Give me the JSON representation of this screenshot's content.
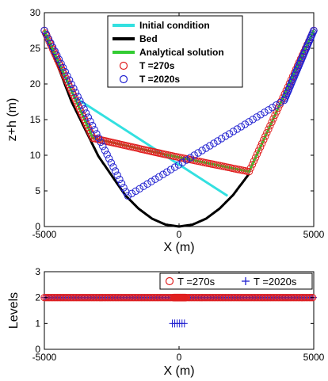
{
  "chart_data": [
    {
      "type": "line",
      "xlabel": "X (m)",
      "ylabel": "z+h (m)",
      "xlim": [
        -5000,
        5000
      ],
      "ylim": [
        0,
        30
      ],
      "xticks": [
        "-5000",
        "0",
        "5000"
      ],
      "yticks": [
        "0",
        "5",
        "10",
        "15",
        "20",
        "25",
        "30"
      ],
      "legend_position": "top-center",
      "series": [
        {
          "name": "Initial condition",
          "style": "line",
          "color": "#33e0e0",
          "x": [
            -5000,
            -3900,
            1800
          ],
          "y": [
            27.5,
            18.2,
            4.3
          ]
        },
        {
          "name": "Bed",
          "style": "line",
          "color": "#000000",
          "x": [
            -5000,
            -4000,
            -3000,
            -2000,
            -1500,
            -1000,
            -500,
            0,
            500,
            1000,
            1500,
            2000,
            2600
          ],
          "y": [
            27.5,
            17.6,
            9.9,
            4.4,
            2.5,
            1.1,
            0.27,
            0,
            0.27,
            1.1,
            2.5,
            4.4,
            7.4
          ]
        },
        {
          "name": "Analytical solution",
          "style": "line",
          "color": "#33cc33",
          "x": [
            -5000,
            -3200,
            -500,
            2600,
            5000
          ],
          "y": [
            27.5,
            12.4,
            10.1,
            7.7,
            27.5
          ]
        },
        {
          "name": "T =270s",
          "style": "marker-circle",
          "color": "#e02020",
          "x": [
            -5000,
            -3200,
            -500,
            2600,
            5000
          ],
          "y": [
            27.5,
            12.4,
            10.1,
            7.7,
            27.5
          ]
        },
        {
          "name": "T =2020s",
          "style": "marker-circle",
          "color": "#2020d0",
          "x": [
            -5000,
            -1900,
            3900,
            5000
          ],
          "y": [
            27.5,
            4.3,
            17.7,
            27.5
          ]
        }
      ]
    },
    {
      "type": "scatter",
      "xlabel": "X (m)",
      "ylabel": "Levels",
      "xlim": [
        -5000,
        5000
      ],
      "ylim": [
        0,
        3
      ],
      "xticks": [
        "-5000",
        "0",
        "5000"
      ],
      "yticks": [
        "0",
        "1",
        "2",
        "3"
      ],
      "legend_position": "top-right",
      "series": [
        {
          "name": "T =270s",
          "style": "marker-circle",
          "color": "#e02020",
          "x_range": [
            -5000,
            5000
          ],
          "level": 2
        },
        {
          "name": "T =2020s",
          "style": "marker-plus",
          "color": "#2020d0",
          "x_range_level2": [
            -5000,
            5000
          ],
          "x_range_level1": [
            -250,
            250
          ],
          "levels": [
            2,
            1
          ]
        }
      ]
    }
  ]
}
